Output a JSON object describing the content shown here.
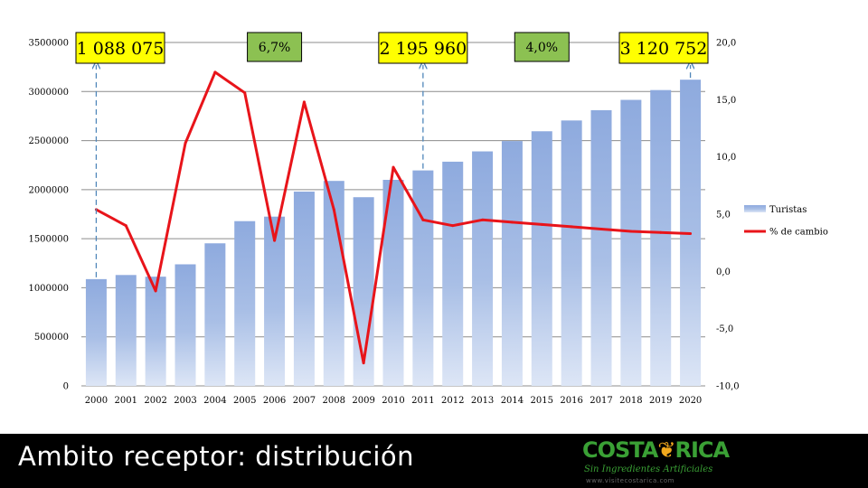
{
  "chart_data": {
    "type": "bar+line",
    "categories": [
      "2000",
      "2001",
      "2002",
      "2003",
      "2004",
      "2005",
      "2006",
      "2007",
      "2008",
      "2009",
      "2010",
      "2011",
      "2012",
      "2013",
      "2014",
      "2015",
      "2016",
      "2017",
      "2018",
      "2019",
      "2020"
    ],
    "series": [
      {
        "name": "Turistas",
        "type": "bar",
        "axis": "left",
        "values": [
          1088075,
          1130000,
          1113000,
          1239000,
          1453000,
          1679000,
          1725000,
          1980000,
          2089000,
          1923000,
          2100000,
          2195960,
          2285000,
          2390000,
          2495000,
          2595000,
          2705000,
          2810000,
          2915000,
          3015000,
          3120752
        ]
      },
      {
        "name": "% de cambio",
        "type": "line",
        "axis": "right",
        "values": [
          5.4,
          4.0,
          -1.7,
          11.2,
          17.4,
          15.6,
          2.7,
          14.8,
          5.4,
          -8.0,
          9.1,
          4.5,
          4.0,
          4.5,
          4.3,
          4.1,
          3.9,
          3.7,
          3.5,
          3.4,
          3.3
        ]
      }
    ],
    "y_left": {
      "min": 0,
      "max": 3500000,
      "ticks": [
        "0",
        "500000",
        "1000000",
        "1500000",
        "2000000",
        "2500000",
        "3000000",
        "3500000"
      ]
    },
    "y_right": {
      "min": -10,
      "max": 20,
      "ticks": [
        "-10,0",
        "-5,0",
        "0,0",
        "5,0",
        "10,0",
        "15,0",
        "20,0"
      ]
    },
    "grid": "horizontal",
    "legend_position": "right",
    "colors": {
      "bars": "#8eaade",
      "line": "#e8141a",
      "callout_fill": "#ffff00",
      "growth_fill": "#8cc152",
      "arrow": "#4f86b9"
    },
    "callouts": [
      {
        "text": "1 088 075",
        "category": "2000",
        "style": "value"
      },
      {
        "text": "6,7%",
        "category": "2006",
        "style": "growth"
      },
      {
        "text": "2 195 960",
        "category": "2011",
        "style": "value"
      },
      {
        "text": "4,0%",
        "category": "2015",
        "style": "growth"
      },
      {
        "text": "3 120 752",
        "category": "2020",
        "style": "value"
      }
    ]
  },
  "footer": {
    "title": "Ambito receptor: distribución",
    "logo": {
      "name_left": "COSTA",
      "name_right": "RICA",
      "tagline": "Sin Ingredientes Artificiales",
      "url": "www.visitecostarica.com"
    }
  }
}
